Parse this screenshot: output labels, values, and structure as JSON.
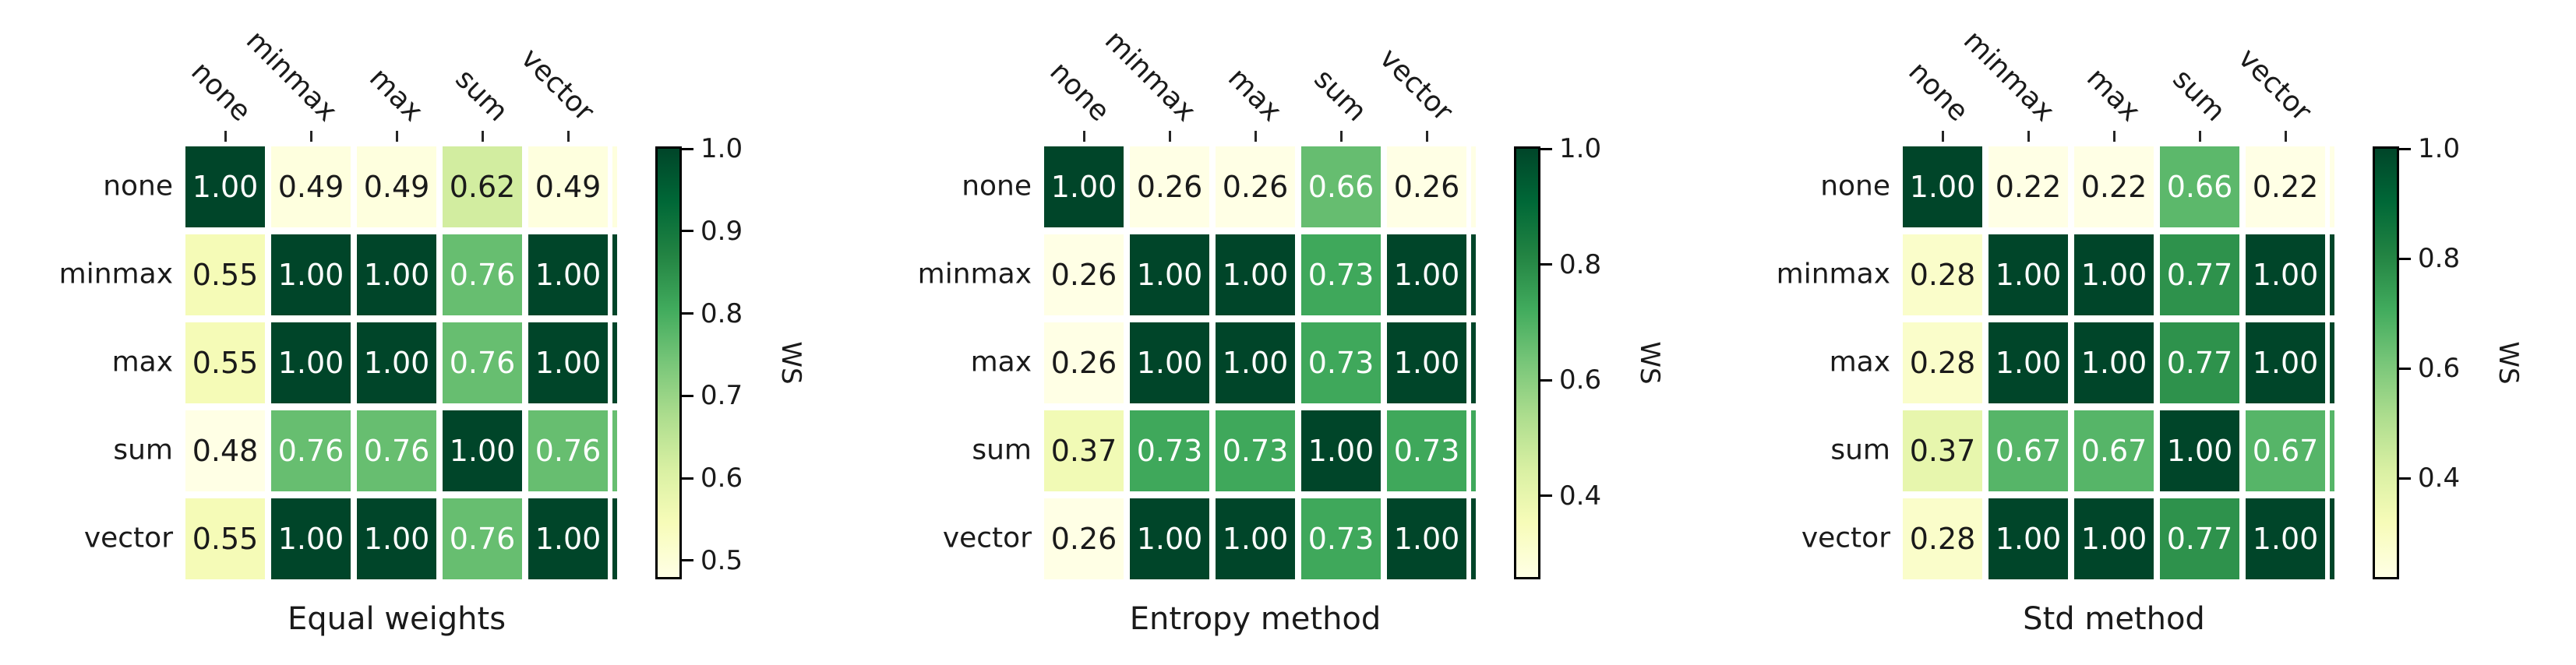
{
  "figure": {
    "background": "#ffffff",
    "colormap_name": "YlGn",
    "colormap_stops": [
      "#ffffe5",
      "#f7fcb9",
      "#d9f0a3",
      "#addd8e",
      "#78c679",
      "#41ab5d",
      "#238443",
      "#006837",
      "#004529"
    ]
  },
  "chart_data": [
    {
      "type": "heatmap",
      "title": "Equal weights",
      "x_categories": [
        "none",
        "minmax",
        "max",
        "sum",
        "vector"
      ],
      "y_categories": [
        "none",
        "minmax",
        "max",
        "sum",
        "vector"
      ],
      "values": [
        [
          1.0,
          0.49,
          0.49,
          0.62,
          0.49
        ],
        [
          0.55,
          1.0,
          1.0,
          0.76,
          1.0
        ],
        [
          0.55,
          1.0,
          1.0,
          0.76,
          1.0
        ],
        [
          0.48,
          0.76,
          0.76,
          1.0,
          0.76
        ],
        [
          0.55,
          1.0,
          1.0,
          0.76,
          1.0
        ]
      ],
      "vmin": 0.48,
      "vmax": 1.0,
      "colorbar_ticks": [
        1.0,
        0.9,
        0.8,
        0.7,
        0.6,
        0.5
      ],
      "colorbar_label": "WS",
      "annotation_format": "2dp",
      "grid": false,
      "legend_position": "right-colorbar"
    },
    {
      "type": "heatmap",
      "title": "Entropy method",
      "x_categories": [
        "none",
        "minmax",
        "max",
        "sum",
        "vector"
      ],
      "y_categories": [
        "none",
        "minmax",
        "max",
        "sum",
        "vector"
      ],
      "values": [
        [
          1.0,
          0.26,
          0.26,
          0.66,
          0.26
        ],
        [
          0.26,
          1.0,
          1.0,
          0.73,
          1.0
        ],
        [
          0.26,
          1.0,
          1.0,
          0.73,
          1.0
        ],
        [
          0.37,
          0.73,
          0.73,
          1.0,
          0.73
        ],
        [
          0.26,
          1.0,
          1.0,
          0.73,
          1.0
        ]
      ],
      "vmin": 0.26,
      "vmax": 1.0,
      "colorbar_ticks": [
        1.0,
        0.8,
        0.6,
        0.4
      ],
      "colorbar_label": "WS",
      "annotation_format": "2dp",
      "grid": false,
      "legend_position": "right-colorbar"
    },
    {
      "type": "heatmap",
      "title": "Std method",
      "x_categories": [
        "none",
        "minmax",
        "max",
        "sum",
        "vector"
      ],
      "y_categories": [
        "none",
        "minmax",
        "max",
        "sum",
        "vector"
      ],
      "values": [
        [
          1.0,
          0.22,
          0.22,
          0.66,
          0.22
        ],
        [
          0.28,
          1.0,
          1.0,
          0.77,
          1.0
        ],
        [
          0.28,
          1.0,
          1.0,
          0.77,
          1.0
        ],
        [
          0.37,
          0.67,
          0.67,
          1.0,
          0.67
        ],
        [
          0.28,
          1.0,
          1.0,
          0.77,
          1.0
        ]
      ],
      "vmin": 0.22,
      "vmax": 1.0,
      "colorbar_ticks": [
        1.0,
        0.8,
        0.6,
        0.4
      ],
      "colorbar_label": "WS",
      "annotation_format": "2dp",
      "grid": false,
      "legend_position": "right-colorbar"
    }
  ]
}
